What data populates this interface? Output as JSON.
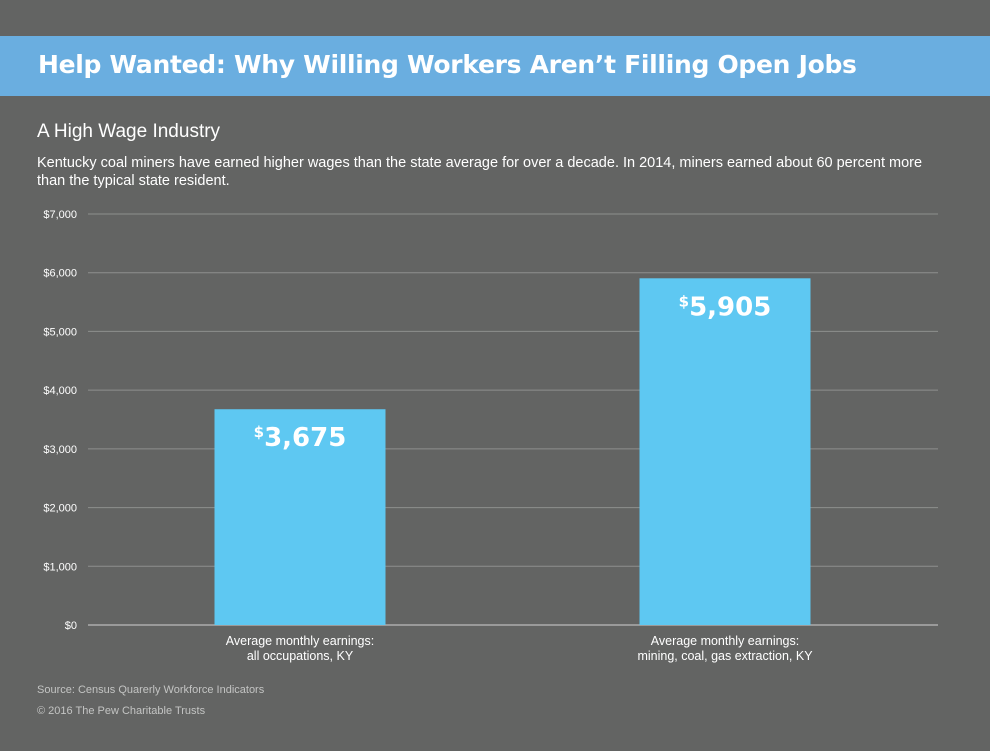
{
  "header": {
    "title": "Help Wanted: Why Willing Workers Aren’t Filling Open Jobs",
    "subtitle": "A High Wage Industry",
    "description": "Kentucky coal miners have earned higher wages than the state average for over a decade. In 2014, miners earned about 60 percent more than the typical state resident."
  },
  "footer": {
    "source": "Source: Census Quarerly Workforce Indicators",
    "copyright": "© 2016 The Pew Charitable Trusts"
  },
  "colors": {
    "background": "#636463",
    "banner": "#6aaee0",
    "bar": "#5ec8f2",
    "grid": "#8e8f8e",
    "text": "#ffffff"
  },
  "chart_data": {
    "type": "bar",
    "categories": [
      [
        "Average monthly earnings:",
        "all occupations, KY"
      ],
      [
        "Average monthly earnings:",
        "mining, coal, gas extraction, KY"
      ]
    ],
    "values": [
      3675,
      5905
    ],
    "data_labels": [
      {
        "currency": "$",
        "amount": "3,675"
      },
      {
        "currency": "$",
        "amount": "5,905"
      }
    ],
    "ylim": [
      0,
      7000
    ],
    "yticks": [
      0,
      1000,
      2000,
      3000,
      4000,
      5000,
      6000,
      7000
    ],
    "ytick_labels": [
      "$0",
      "$1,000",
      "$2,000",
      "$3,000",
      "$4,000",
      "$5,000",
      "$6,000",
      "$7,000"
    ],
    "grid": true,
    "xlabel": "",
    "ylabel": "",
    "legend": "none"
  }
}
